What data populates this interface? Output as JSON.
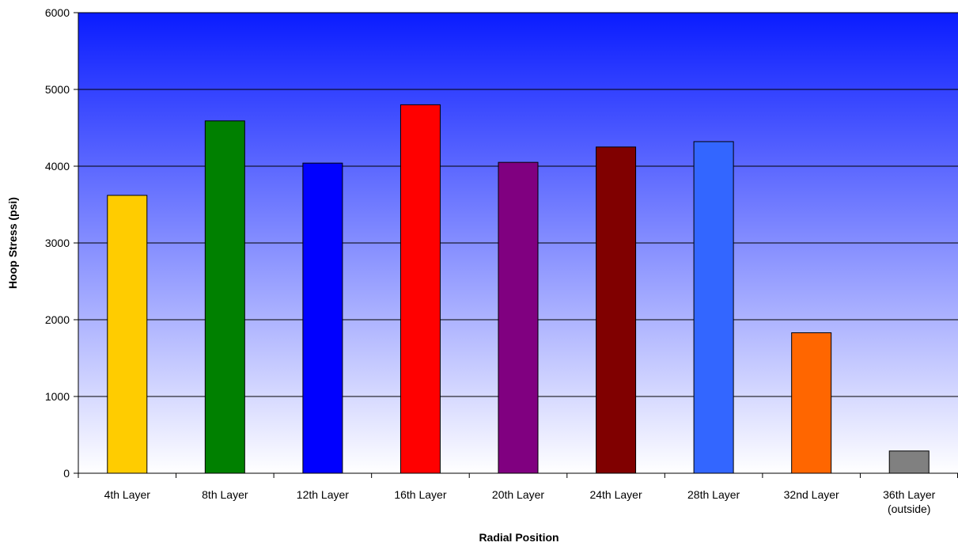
{
  "chart_data": {
    "type": "bar",
    "title": "",
    "xlabel": "Radial Position",
    "ylabel": "Hoop Stress (psi)",
    "ylim": [
      0,
      6000
    ],
    "yticks": [
      0,
      1000,
      2000,
      3000,
      4000,
      5000,
      6000
    ],
    "grid": true,
    "legend": "none",
    "background": {
      "type": "vertical-gradient",
      "top_color": "#0A1CFF",
      "bottom_color": "#FFFFFF"
    },
    "categories": [
      [
        "4th Layer"
      ],
      [
        "8th Layer"
      ],
      [
        "12th Layer"
      ],
      [
        "16th Layer"
      ],
      [
        "20th Layer"
      ],
      [
        "24th Layer"
      ],
      [
        "28th Layer"
      ],
      [
        "32nd Layer"
      ],
      [
        "36th Layer",
        "(outside)"
      ]
    ],
    "values": [
      3620,
      4590,
      4040,
      4800,
      4050,
      4250,
      4320,
      1830,
      290
    ],
    "colors": [
      "#FFCC00",
      "#008000",
      "#0000FF",
      "#FF0000",
      "#800080",
      "#800000",
      "#3366FF",
      "#FF6600",
      "#808080"
    ]
  }
}
